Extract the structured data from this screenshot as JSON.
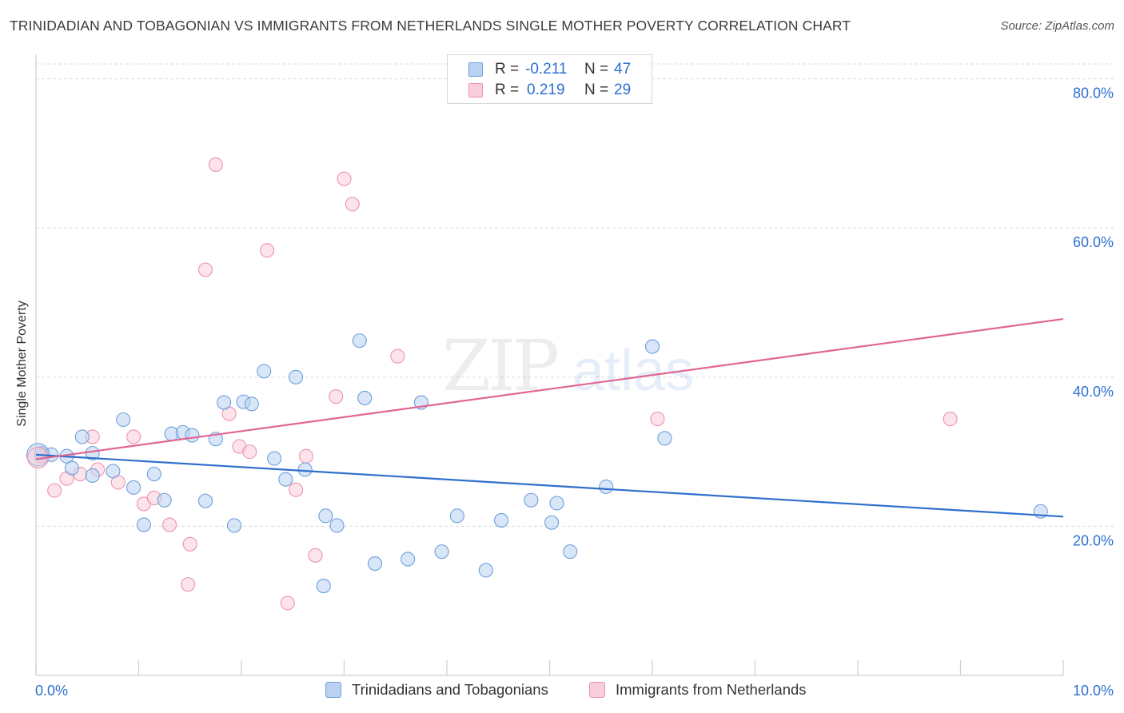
{
  "title": "TRINIDADIAN AND TOBAGONIAN VS IMMIGRANTS FROM NETHERLANDS SINGLE MOTHER POVERTY CORRELATION CHART",
  "source": "Source: ZipAtlas.com",
  "watermark": {
    "zip": "ZIP",
    "atlas": "atlas"
  },
  "legend": {
    "r_label": "R =",
    "n_label": "N =",
    "rows": [
      {
        "r": "-0.211",
        "n": "47"
      },
      {
        "r": "0.219",
        "n": "29"
      }
    ]
  },
  "colors": {
    "blue_fill": "#b9d2f2",
    "blue_stroke": "#6e9fdc",
    "blue_line": "#2f6fcc",
    "pink_fill": "#f9cdd9",
    "pink_stroke": "#ec94b0",
    "pink_line": "#e06791",
    "tick_label": "#2d6fcf",
    "grid": "#dcdcdc"
  },
  "chart_data": {
    "type": "scatter",
    "title": "TRINIDADIAN AND TOBAGONIAN VS IMMIGRANTS FROM NETHERLANDS SINGLE MOTHER POVERTY CORRELATION CHART",
    "xlabel": "",
    "ylabel": "Single Mother Poverty",
    "xlim": [
      0,
      10
    ],
    "ylim": [
      0,
      82
    ],
    "x_tick_labels": [
      "0.0%",
      "10.0%"
    ],
    "y_ticks": [
      20,
      40,
      60,
      80
    ],
    "y_tick_labels": [
      "20.0%",
      "40.0%",
      "60.0%",
      "80.0%"
    ],
    "grid": true,
    "legend_position": "bottom",
    "series": [
      {
        "name": "Trinidadians and Tobagonians",
        "r": -0.211,
        "n": 47,
        "trend": {
          "x": [
            0,
            10
          ],
          "y": [
            29.6,
            21.3
          ]
        },
        "points": [
          [
            0.05,
            29.8
          ],
          [
            0.15,
            29.6
          ],
          [
            0.3,
            29.4
          ],
          [
            0.35,
            27.8
          ],
          [
            0.45,
            32.0
          ],
          [
            0.55,
            29.8
          ],
          [
            0.55,
            26.8
          ],
          [
            0.75,
            27.4
          ],
          [
            0.85,
            34.3
          ],
          [
            0.95,
            25.2
          ],
          [
            1.05,
            20.2
          ],
          [
            1.15,
            27.0
          ],
          [
            1.25,
            23.5
          ],
          [
            1.32,
            32.4
          ],
          [
            1.43,
            32.6
          ],
          [
            1.52,
            32.2
          ],
          [
            1.65,
            23.4
          ],
          [
            1.75,
            31.7
          ],
          [
            1.83,
            36.6
          ],
          [
            1.93,
            20.1
          ],
          [
            2.02,
            36.7
          ],
          [
            2.1,
            36.4
          ],
          [
            2.22,
            40.8
          ],
          [
            2.32,
            29.1
          ],
          [
            2.43,
            26.3
          ],
          [
            2.53,
            40.0
          ],
          [
            2.62,
            27.6
          ],
          [
            2.8,
            12.0
          ],
          [
            2.82,
            21.4
          ],
          [
            2.93,
            20.1
          ],
          [
            3.15,
            44.9
          ],
          [
            3.2,
            37.2
          ],
          [
            3.3,
            15.0
          ],
          [
            3.62,
            15.6
          ],
          [
            3.75,
            36.6
          ],
          [
            3.95,
            16.6
          ],
          [
            4.1,
            21.4
          ],
          [
            4.38,
            14.1
          ],
          [
            4.53,
            20.8
          ],
          [
            4.82,
            23.5
          ],
          [
            5.02,
            20.5
          ],
          [
            5.07,
            23.1
          ],
          [
            5.2,
            16.6
          ],
          [
            5.55,
            25.3
          ],
          [
            6.0,
            44.1
          ],
          [
            6.12,
            31.8
          ],
          [
            9.78,
            22.0
          ]
        ]
      },
      {
        "name": "Immigrants from Netherlands",
        "r": 0.219,
        "n": 29,
        "trend": {
          "x": [
            0,
            10
          ],
          "y": [
            29.0,
            47.8
          ]
        },
        "points": [
          [
            0.05,
            29.4
          ],
          [
            0.18,
            24.8
          ],
          [
            0.3,
            26.4
          ],
          [
            0.43,
            27.0
          ],
          [
            0.55,
            32.0
          ],
          [
            0.6,
            27.6
          ],
          [
            0.8,
            25.9
          ],
          [
            0.95,
            32.0
          ],
          [
            1.05,
            23.0
          ],
          [
            1.15,
            23.8
          ],
          [
            1.3,
            20.2
          ],
          [
            1.48,
            12.2
          ],
          [
            1.5,
            17.6
          ],
          [
            1.65,
            54.4
          ],
          [
            1.75,
            68.5
          ],
          [
            1.88,
            35.1
          ],
          [
            1.98,
            30.7
          ],
          [
            2.08,
            30.0
          ],
          [
            2.25,
            57.0
          ],
          [
            2.45,
            9.7
          ],
          [
            2.53,
            24.9
          ],
          [
            2.63,
            29.4
          ],
          [
            2.72,
            16.1
          ],
          [
            2.92,
            37.4
          ],
          [
            3.0,
            66.6
          ],
          [
            3.08,
            63.2
          ],
          [
            3.52,
            42.8
          ],
          [
            6.05,
            34.4
          ],
          [
            8.9,
            34.4
          ]
        ]
      }
    ]
  },
  "bottom_legend": [
    "Trinidadians and Tobagonians",
    "Immigrants from Netherlands"
  ]
}
